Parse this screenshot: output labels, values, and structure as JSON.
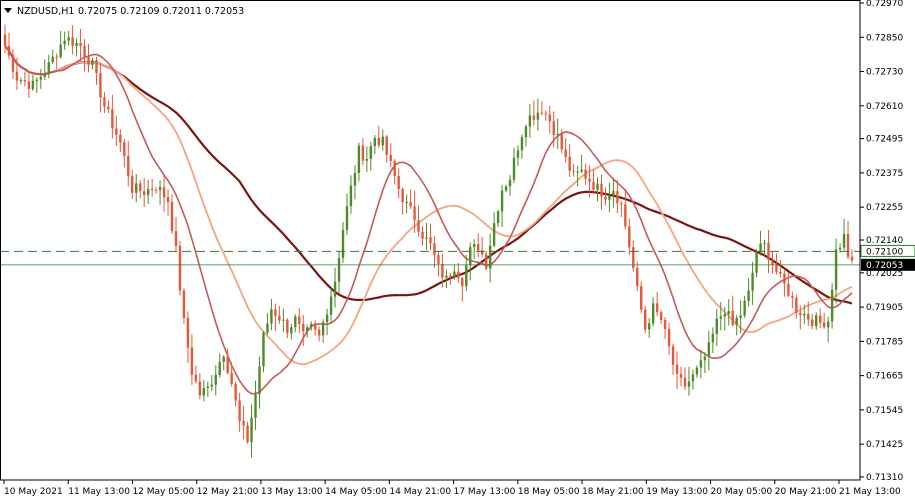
{
  "header": {
    "symbol": "NZDUSD,H1",
    "ohlc": "0.72075 0.72109 0.72011 0.72053"
  },
  "colors": {
    "background": "#ffffff",
    "bull": "#4e8a2a",
    "bear": "#e5573a",
    "ma_fast": "#c55a5a",
    "ma_mid": "#f4a582",
    "ma_slow": "#7a1414",
    "level_line": "#2e7d32",
    "price_badge": "#000000",
    "level_badge": "#ffffff"
  },
  "chart_data": {
    "type": "candlestick",
    "symbol": "NZDUSD",
    "timeframe": "H1",
    "ylim": [
      0.7131,
      0.7297
    ],
    "y_ticks": [
      "0.72970",
      "0.72850",
      "0.72730",
      "0.72610",
      "0.72495",
      "0.72375",
      "0.72255",
      "0.72140",
      "0.72025",
      "0.71905",
      "0.71785",
      "0.71665",
      "0.71545",
      "0.71425",
      "0.71310"
    ],
    "x_ticks": [
      "10 May 2021",
      "11 May 13:00",
      "12 May 05:00",
      "12 May 21:00",
      "13 May 13:00",
      "14 May 05:00",
      "14 May 21:00",
      "17 May 13:00",
      "18 May 05:00",
      "18 May 21:00",
      "19 May 13:00",
      "20 May 05:00",
      "20 May 21:00",
      "21 May 13:00"
    ],
    "price_level": "0.72100",
    "last_price": "0.72053",
    "anchors": [
      [
        0,
        0.7282
      ],
      [
        3,
        0.7271
      ],
      [
        7,
        0.7268
      ],
      [
        11,
        0.7275
      ],
      [
        15,
        0.7285
      ],
      [
        19,
        0.7282
      ],
      [
        22,
        0.7275
      ],
      [
        25,
        0.7261
      ],
      [
        29,
        0.7248
      ],
      [
        32,
        0.7232
      ],
      [
        35,
        0.7231
      ],
      [
        38,
        0.7233
      ],
      [
        41,
        0.7228
      ],
      [
        43,
        0.721
      ],
      [
        45,
        0.7185
      ],
      [
        47,
        0.7168
      ],
      [
        49,
        0.716
      ],
      [
        51,
        0.7162
      ],
      [
        53,
        0.7168
      ],
      [
        55,
        0.7175
      ],
      [
        57,
        0.7164
      ],
      [
        59,
        0.715
      ],
      [
        61,
        0.7144
      ],
      [
        63,
        0.716
      ],
      [
        65,
        0.718
      ],
      [
        67,
        0.719
      ],
      [
        69,
        0.7187
      ],
      [
        71,
        0.7183
      ],
      [
        73,
        0.7186
      ],
      [
        75,
        0.718
      ],
      [
        77,
        0.7183
      ],
      [
        79,
        0.718
      ],
      [
        81,
        0.719
      ],
      [
        83,
        0.72
      ],
      [
        85,
        0.7218
      ],
      [
        87,
        0.7232
      ],
      [
        89,
        0.7245
      ],
      [
        91,
        0.7243
      ],
      [
        93,
        0.725
      ],
      [
        95,
        0.7248
      ],
      [
        97,
        0.724
      ],
      [
        99,
        0.7232
      ],
      [
        101,
        0.7226
      ],
      [
        103,
        0.7222
      ],
      [
        105,
        0.7216
      ],
      [
        107,
        0.7212
      ],
      [
        109,
        0.7204
      ],
      [
        111,
        0.72
      ],
      [
        113,
        0.7205
      ],
      [
        115,
        0.72
      ],
      [
        117,
        0.721
      ],
      [
        119,
        0.7212
      ],
      [
        121,
        0.7206
      ],
      [
        123,
        0.722
      ],
      [
        125,
        0.7232
      ],
      [
        127,
        0.7236
      ],
      [
        129,
        0.7247
      ],
      [
        131,
        0.7256
      ],
      [
        133,
        0.7258
      ],
      [
        135,
        0.726
      ],
      [
        137,
        0.7256
      ],
      [
        139,
        0.725
      ],
      [
        141,
        0.7242
      ],
      [
        143,
        0.7236
      ],
      [
        145,
        0.7238
      ],
      [
        147,
        0.7235
      ],
      [
        149,
        0.7232
      ],
      [
        151,
        0.723
      ],
      [
        153,
        0.7232
      ],
      [
        155,
        0.7226
      ],
      [
        157,
        0.7212
      ],
      [
        159,
        0.7196
      ],
      [
        161,
        0.7183
      ],
      [
        163,
        0.719
      ],
      [
        165,
        0.7186
      ],
      [
        167,
        0.7176
      ],
      [
        169,
        0.7165
      ],
      [
        171,
        0.7163
      ],
      [
        173,
        0.7166
      ],
      [
        175,
        0.717
      ],
      [
        177,
        0.7176
      ],
      [
        179,
        0.7185
      ],
      [
        181,
        0.719
      ],
      [
        183,
        0.7184
      ],
      [
        185,
        0.7188
      ],
      [
        187,
        0.7195
      ],
      [
        189,
        0.721
      ],
      [
        191,
        0.7212
      ],
      [
        193,
        0.7206
      ],
      [
        195,
        0.72
      ],
      [
        197,
        0.7196
      ],
      [
        199,
        0.719
      ],
      [
        201,
        0.7188
      ],
      [
        203,
        0.7186
      ],
      [
        205,
        0.7185
      ],
      [
        207,
        0.7186
      ],
      [
        209,
        0.721
      ],
      [
        211,
        0.7215
      ],
      [
        212,
        0.7209
      ],
      [
        213,
        0.7205
      ]
    ]
  }
}
